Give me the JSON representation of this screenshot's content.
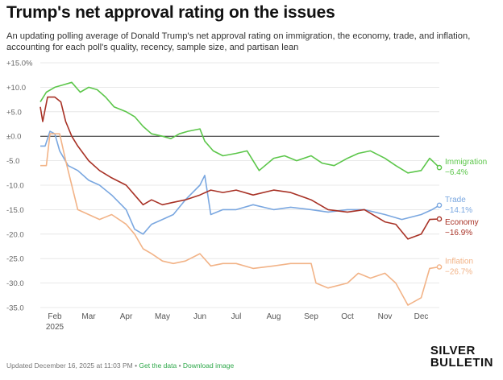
{
  "page": {
    "title": "Trump's net approval rating on the issues",
    "subtitle": "An updating polling average of Donald Trump's net approval rating on immigration, the economy, trade, and inflation, accounting for each poll's quality, recency, sample size, and partisan lean"
  },
  "footer": {
    "updated": "Updated December 16, 2025 at 11:03 PM",
    "sep": " • ",
    "get_data": "Get the data",
    "download": "Download image"
  },
  "logo": {
    "line1": "SILVER",
    "line2": "BULLETIN"
  },
  "chart_data": {
    "type": "line",
    "title": "Trump's net approval rating on the issues",
    "xlabel": "",
    "ylabel": "",
    "ylim": [
      -35,
      15
    ],
    "yticks": [
      15,
      10,
      5,
      0,
      -5,
      -10,
      -15,
      -20,
      -25,
      -30,
      -35
    ],
    "ytick_labels": [
      "+15.0%",
      "+10.0",
      "+5.0",
      "±0.0",
      "-5.0",
      "-10.0",
      "-15.0",
      "-20.0",
      "-25.0",
      "-30.0",
      "-35.0"
    ],
    "xlim": [
      "2025-01-20",
      "2025-12-16"
    ],
    "xticks": [
      {
        "date": "2025-02-01",
        "label": "Feb",
        "sub": "2025"
      },
      {
        "date": "2025-03-01",
        "label": "Mar"
      },
      {
        "date": "2025-04-01",
        "label": "Apr"
      },
      {
        "date": "2025-05-01",
        "label": "May"
      },
      {
        "date": "2025-06-01",
        "label": "Jun"
      },
      {
        "date": "2025-07-01",
        "label": "Jul"
      },
      {
        "date": "2025-08-01",
        "label": "Aug"
      },
      {
        "date": "2025-09-01",
        "label": "Sep"
      },
      {
        "date": "2025-10-01",
        "label": "Oct"
      },
      {
        "date": "2025-11-01",
        "label": "Nov"
      },
      {
        "date": "2025-12-01",
        "label": "Dec"
      }
    ],
    "grid": "horizontal",
    "series": [
      {
        "name": "Immigration",
        "final_label": "−6.4%",
        "color": "#5cc64a",
        "final": -6.4,
        "points": [
          [
            "2025-01-20",
            7
          ],
          [
            "2025-01-25",
            9
          ],
          [
            "2025-02-01",
            10
          ],
          [
            "2025-02-08",
            10.5
          ],
          [
            "2025-02-15",
            11
          ],
          [
            "2025-02-22",
            9
          ],
          [
            "2025-03-01",
            10
          ],
          [
            "2025-03-08",
            9.5
          ],
          [
            "2025-03-15",
            8
          ],
          [
            "2025-03-22",
            6
          ],
          [
            "2025-04-01",
            5
          ],
          [
            "2025-04-08",
            4
          ],
          [
            "2025-04-15",
            2
          ],
          [
            "2025-04-22",
            0.5
          ],
          [
            "2025-05-01",
            0
          ],
          [
            "2025-05-08",
            -0.5
          ],
          [
            "2025-05-15",
            0.5
          ],
          [
            "2025-05-22",
            1
          ],
          [
            "2025-06-01",
            1.5
          ],
          [
            "2025-06-05",
            -1
          ],
          [
            "2025-06-12",
            -3
          ],
          [
            "2025-06-20",
            -4
          ],
          [
            "2025-07-01",
            -3.5
          ],
          [
            "2025-07-10",
            -3
          ],
          [
            "2025-07-20",
            -7
          ],
          [
            "2025-08-01",
            -4.5
          ],
          [
            "2025-08-10",
            -4
          ],
          [
            "2025-08-20",
            -5
          ],
          [
            "2025-09-01",
            -4
          ],
          [
            "2025-09-10",
            -5.5
          ],
          [
            "2025-09-20",
            -6
          ],
          [
            "2025-10-01",
            -4.5
          ],
          [
            "2025-10-10",
            -3.5
          ],
          [
            "2025-10-20",
            -3
          ],
          [
            "2025-11-01",
            -4.5
          ],
          [
            "2025-11-10",
            -6
          ],
          [
            "2025-11-20",
            -7.5
          ],
          [
            "2025-12-01",
            -7
          ],
          [
            "2025-12-08",
            -4.5
          ],
          [
            "2025-12-16",
            -6.4
          ]
        ]
      },
      {
        "name": "Trade",
        "final_label": "−14.1%",
        "color": "#7aa7e0",
        "final": -14.1,
        "points": [
          [
            "2025-01-20",
            -2
          ],
          [
            "2025-01-24",
            -2
          ],
          [
            "2025-01-28",
            1
          ],
          [
            "2025-02-01",
            0.5
          ],
          [
            "2025-02-05",
            -3
          ],
          [
            "2025-02-12",
            -6
          ],
          [
            "2025-02-20",
            -7
          ],
          [
            "2025-03-01",
            -9
          ],
          [
            "2025-03-10",
            -10
          ],
          [
            "2025-03-20",
            -12
          ],
          [
            "2025-04-01",
            -15
          ],
          [
            "2025-04-08",
            -19
          ],
          [
            "2025-04-15",
            -20
          ],
          [
            "2025-04-22",
            -18
          ],
          [
            "2025-05-01",
            -17
          ],
          [
            "2025-05-10",
            -16
          ],
          [
            "2025-05-20",
            -13
          ],
          [
            "2025-06-01",
            -10
          ],
          [
            "2025-06-05",
            -8
          ],
          [
            "2025-06-10",
            -16
          ],
          [
            "2025-06-20",
            -15
          ],
          [
            "2025-07-01",
            -15
          ],
          [
            "2025-07-15",
            -14
          ],
          [
            "2025-08-01",
            -15
          ],
          [
            "2025-08-15",
            -14.5
          ],
          [
            "2025-09-01",
            -15
          ],
          [
            "2025-09-15",
            -15.5
          ],
          [
            "2025-10-01",
            -15
          ],
          [
            "2025-10-15",
            -15
          ],
          [
            "2025-11-01",
            -16
          ],
          [
            "2025-11-15",
            -17
          ],
          [
            "2025-12-01",
            -16
          ],
          [
            "2025-12-10",
            -15
          ],
          [
            "2025-12-16",
            -14.1
          ]
        ]
      },
      {
        "name": "Economy",
        "final_label": "−16.9%",
        "color": "#a83226",
        "final": -16.9,
        "points": [
          [
            "2025-01-20",
            6
          ],
          [
            "2025-01-22",
            3
          ],
          [
            "2025-01-26",
            8
          ],
          [
            "2025-02-01",
            8
          ],
          [
            "2025-02-06",
            7
          ],
          [
            "2025-02-10",
            3
          ],
          [
            "2025-02-15",
            0
          ],
          [
            "2025-02-20",
            -2
          ],
          [
            "2025-03-01",
            -5
          ],
          [
            "2025-03-10",
            -7
          ],
          [
            "2025-03-20",
            -8.5
          ],
          [
            "2025-04-01",
            -10
          ],
          [
            "2025-04-08",
            -12
          ],
          [
            "2025-04-15",
            -14
          ],
          [
            "2025-04-22",
            -13
          ],
          [
            "2025-05-01",
            -14
          ],
          [
            "2025-05-10",
            -13.5
          ],
          [
            "2025-05-20",
            -13
          ],
          [
            "2025-06-01",
            -12
          ],
          [
            "2025-06-10",
            -11
          ],
          [
            "2025-06-20",
            -11.5
          ],
          [
            "2025-07-01",
            -11
          ],
          [
            "2025-07-15",
            -12
          ],
          [
            "2025-08-01",
            -11
          ],
          [
            "2025-08-15",
            -11.5
          ],
          [
            "2025-09-01",
            -13
          ],
          [
            "2025-09-15",
            -15
          ],
          [
            "2025-10-01",
            -15.5
          ],
          [
            "2025-10-15",
            -15
          ],
          [
            "2025-11-01",
            -17.5
          ],
          [
            "2025-11-10",
            -18
          ],
          [
            "2025-11-20",
            -21
          ],
          [
            "2025-12-01",
            -20
          ],
          [
            "2025-12-08",
            -17
          ],
          [
            "2025-12-16",
            -16.9
          ]
        ]
      },
      {
        "name": "Inflation",
        "final_label": "−26.7%",
        "color": "#f2b387",
        "final": -26.7,
        "points": [
          [
            "2025-01-20",
            -6
          ],
          [
            "2025-01-25",
            -6
          ],
          [
            "2025-01-28",
            0.5
          ],
          [
            "2025-02-05",
            0.5
          ],
          [
            "2025-02-10",
            -5
          ],
          [
            "2025-02-15",
            -10
          ],
          [
            "2025-02-20",
            -15
          ],
          [
            "2025-03-01",
            -16
          ],
          [
            "2025-03-10",
            -17
          ],
          [
            "2025-03-20",
            -16
          ],
          [
            "2025-04-01",
            -18
          ],
          [
            "2025-04-08",
            -20
          ],
          [
            "2025-04-15",
            -23
          ],
          [
            "2025-04-22",
            -24
          ],
          [
            "2025-05-01",
            -25.5
          ],
          [
            "2025-05-10",
            -26
          ],
          [
            "2025-05-20",
            -25.5
          ],
          [
            "2025-06-01",
            -24
          ],
          [
            "2025-06-10",
            -26.5
          ],
          [
            "2025-06-20",
            -26
          ],
          [
            "2025-07-01",
            -26
          ],
          [
            "2025-07-15",
            -27
          ],
          [
            "2025-08-01",
            -26.5
          ],
          [
            "2025-08-15",
            -26
          ],
          [
            "2025-09-01",
            -26
          ],
          [
            "2025-09-05",
            -30
          ],
          [
            "2025-09-15",
            -31
          ],
          [
            "2025-10-01",
            -30
          ],
          [
            "2025-10-10",
            -28
          ],
          [
            "2025-10-20",
            -29
          ],
          [
            "2025-11-01",
            -28
          ],
          [
            "2025-11-10",
            -30
          ],
          [
            "2025-11-20",
            -34.5
          ],
          [
            "2025-12-01",
            -33
          ],
          [
            "2025-12-08",
            -27
          ],
          [
            "2025-12-16",
            -26.7
          ]
        ]
      }
    ]
  }
}
